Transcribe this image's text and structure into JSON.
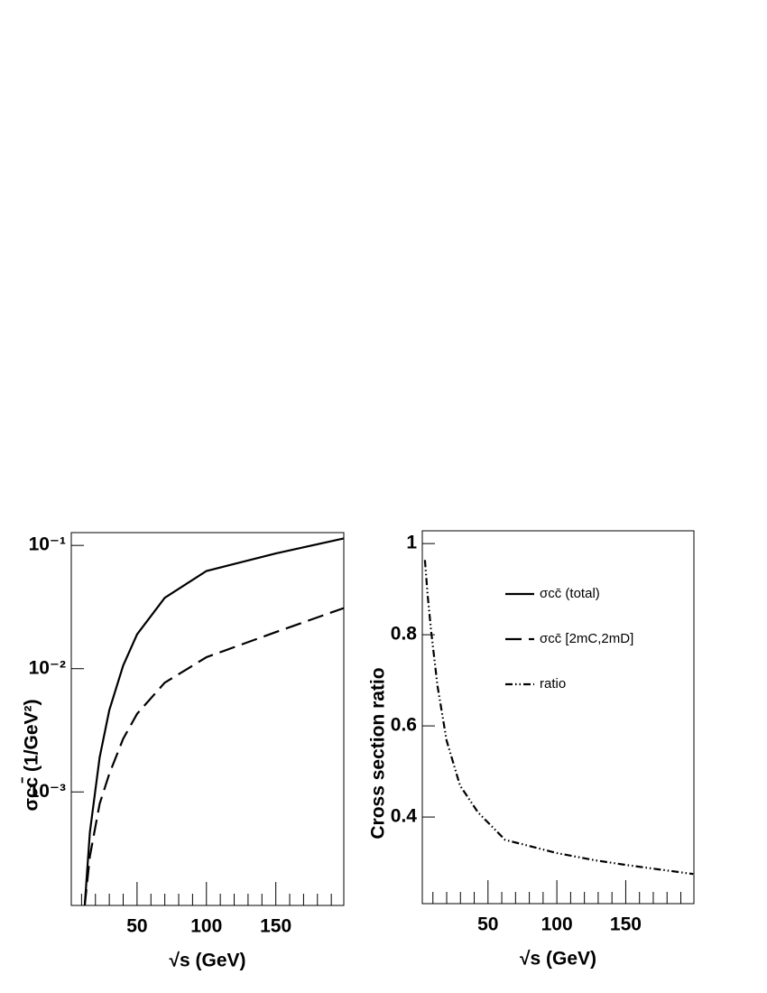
{
  "chart_data": [
    {
      "type": "line",
      "ylog": true,
      "xlabel": "√s (GeV)",
      "ylabel": "σcc̄ (1/GeV²)",
      "xlim": [
        2.6,
        199
      ],
      "ylim": [
        0.00012,
        0.127
      ],
      "xticks": [
        50,
        100,
        150
      ],
      "xminorticks": [
        10,
        20,
        30,
        40,
        60,
        70,
        80,
        90,
        110,
        120,
        130,
        140,
        160,
        170,
        180,
        190
      ],
      "yticks": [
        {
          "value": 0.001,
          "label": "10⁻³"
        },
        {
          "value": 0.01,
          "label": "10⁻²"
        },
        {
          "value": 0.1,
          "label": "10⁻¹"
        }
      ],
      "x": [
        12.3,
        16,
        23,
        30,
        40,
        50,
        70,
        100,
        150,
        199
      ],
      "series": [
        {
          "name": "σcc̄ (total)",
          "color": "#000000",
          "dash": "solid",
          "values": [
            0.00012,
            0.00047,
            0.0019,
            0.0046,
            0.0106,
            0.019,
            0.0376,
            0.062,
            0.086,
            0.114
          ]
        },
        {
          "name": "σcc̄ [2mC,2mD]",
          "color": "#000000",
          "dash": "dashed",
          "values": [
            0.00012,
            0.0003,
            0.0008,
            0.0014,
            0.0027,
            0.0043,
            0.0077,
            0.0124,
            0.0198,
            0.031
          ]
        }
      ]
    },
    {
      "type": "line",
      "ylog": false,
      "xlabel": "√s (GeV)",
      "ylabel": "Cross section ratio",
      "xlim": [
        2.3,
        199.5
      ],
      "ylim": [
        0.21,
        1.028
      ],
      "xticks": [
        50,
        100,
        150
      ],
      "xminorticks": [
        10,
        20,
        30,
        40,
        60,
        70,
        80,
        90,
        110,
        120,
        130,
        140,
        160,
        170,
        180,
        190
      ],
      "yticks": [
        0.4,
        0.6,
        0.8,
        1
      ],
      "x": [
        4.2,
        6.2,
        8.8,
        13.4,
        19.9,
        29.7,
        42.8,
        62.4,
        100,
        127.8,
        150,
        199
      ],
      "series": [
        {
          "name": "ratio",
          "color": "#000000",
          "dash": "dashdotdot",
          "values": [
            0.964,
            0.885,
            0.806,
            0.687,
            0.568,
            0.469,
            0.41,
            0.35,
            0.321,
            0.305,
            0.295,
            0.275
          ]
        }
      ]
    }
  ]
}
